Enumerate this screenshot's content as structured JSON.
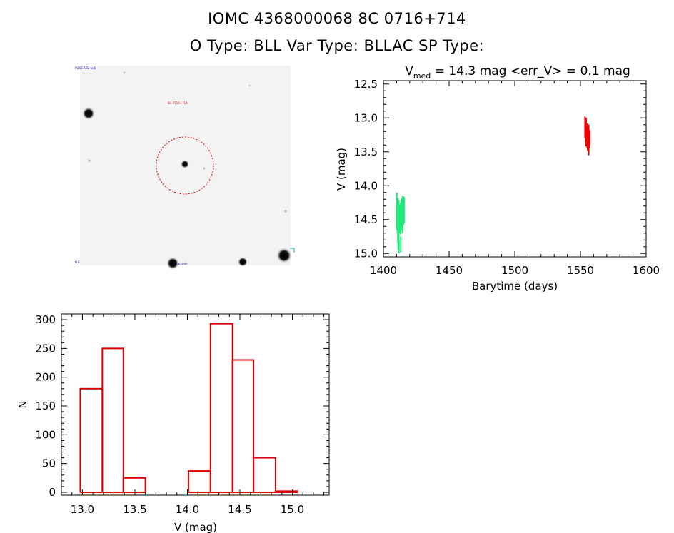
{
  "header": {
    "title_line1": "IOMC 4368000068    8C 0716+714",
    "title_line2": "O Type: BLL  Var Type: BLLAC  SP Type:"
  },
  "colors": {
    "hist_bar": "#dd0000",
    "lc_red": "#ee0000",
    "lc_green": "#22e87a",
    "axis": "#000000"
  },
  "finder": {
    "top_left_label": "POSS RED (x4)",
    "marker_label": "8C 0716+714",
    "bottom_left_label": "N E",
    "bottom_label": "1 arcmin"
  },
  "chart_data": [
    {
      "type": "scatter",
      "name": "light_curve",
      "title_prefix": "V",
      "title_sub": "med",
      "title_suffix": " = 14.3 mag <err_V> = 0.1 mag",
      "xlabel": "Barytime (days)",
      "ylabel": "V (mag)",
      "xlim": [
        1400,
        1600
      ],
      "ylim": [
        15.05,
        12.45
      ],
      "xticks": [
        1400,
        1450,
        1500,
        1550,
        1600
      ],
      "xtick_labels": [
        "1400",
        "1450",
        "1500",
        "1550",
        "1600"
      ],
      "yticks": [
        12.5,
        13.0,
        13.5,
        14.0,
        14.5,
        15.0
      ],
      "ytick_labels": [
        "12.5",
        "13.0",
        "13.5",
        "14.0",
        "14.5",
        "15.0"
      ],
      "series": [
        {
          "name": "green",
          "x": [
            1410.2,
            1410.6,
            1411.0,
            1411.3,
            1411.7,
            1412.0,
            1412.4,
            1412.8,
            1413.1,
            1413.5,
            1413.9,
            1414.2,
            1414.6,
            1415.0,
            1415.3,
            1415.7,
            1411.8,
            1413.2
          ],
          "y_low": [
            14.1,
            14.25,
            14.18,
            14.3,
            14.22,
            14.28,
            14.35,
            14.3,
            14.25,
            14.2,
            14.22,
            14.18,
            14.15,
            14.2,
            14.17,
            14.16,
            14.8,
            14.75
          ],
          "y_high": [
            14.65,
            14.7,
            14.85,
            14.95,
            14.8,
            14.7,
            14.65,
            14.68,
            14.72,
            14.62,
            14.66,
            14.6,
            14.7,
            14.55,
            14.58,
            14.55,
            15.0,
            14.98
          ]
        },
        {
          "name": "red",
          "x": [
            1553.5,
            1553.9,
            1554.3,
            1554.7,
            1555.1,
            1555.5,
            1555.9,
            1556.3,
            1556.7,
            1557.0
          ],
          "y_low": [
            12.98,
            13.05,
            13.0,
            13.1,
            13.12,
            13.08,
            13.15,
            13.1,
            13.2,
            13.18
          ],
          "y_high": [
            13.3,
            13.35,
            13.42,
            13.38,
            13.45,
            13.48,
            13.5,
            13.55,
            13.45,
            13.4
          ]
        }
      ]
    },
    {
      "type": "bar",
      "name": "histogram",
      "xlabel": "V (mag)",
      "ylabel": "N",
      "xlim": [
        12.8,
        15.35
      ],
      "ylim": [
        -5,
        310
      ],
      "xticks": [
        13.0,
        13.5,
        14.0,
        14.5,
        15.0
      ],
      "xtick_labels": [
        "13.0",
        "13.5",
        "14.0",
        "14.5",
        "15.0"
      ],
      "yticks": [
        0,
        50,
        100,
        150,
        200,
        250,
        300
      ],
      "ytick_labels": [
        "0",
        "50",
        "100",
        "150",
        "200",
        "250",
        "300"
      ],
      "bin_edges": [
        12.98,
        13.19,
        13.39,
        13.6,
        13.8,
        14.01,
        14.22,
        14.43,
        14.63,
        14.84,
        15.05
      ],
      "values": [
        180,
        250,
        25,
        0,
        0,
        37,
        293,
        230,
        60,
        2
      ]
    }
  ]
}
